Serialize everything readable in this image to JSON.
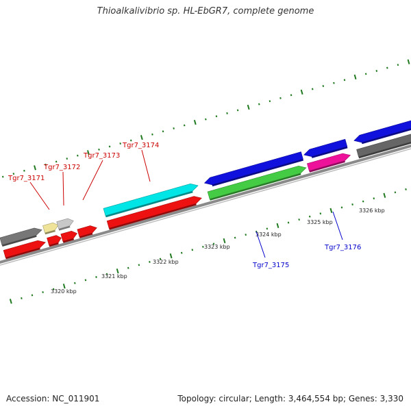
{
  "title": "Thioalkalivibrio sp. HL-EbGR7, complete genome",
  "footer": {
    "accession": "Accession: NC_011901",
    "summary": "Topology: circular; Length: 3,464,554 bp; Genes: 3,330"
  },
  "colors": {
    "backbone": "#8a8a8a",
    "ticks": "#1f7a1f",
    "label_top": "#cc0000",
    "label_bottom": "#0000cc"
  },
  "axis_labels": [
    "3320 kbp",
    "3321 kbp",
    "3322 kbp",
    "3323 kbp",
    "3324 kbp",
    "3325 kbp",
    "3326 kbp"
  ],
  "genes_top_strand": [
    {
      "id": "g1",
      "color": "#777777",
      "row": "outer",
      "dir": "fwd"
    },
    {
      "id": "g2",
      "color": "#efe39a",
      "row": "outer",
      "dir": "fwd"
    },
    {
      "id": "g3",
      "color": "#c8c8c8",
      "row": "outer",
      "dir": "fwd"
    },
    {
      "id": "g4",
      "color": "#00e5e5",
      "row": "outer",
      "dir": "fwd"
    },
    {
      "id": "g5",
      "color": "#ee1111",
      "row": "inner",
      "dir": "fwd"
    },
    {
      "id": "g6",
      "color": "#ee1111",
      "row": "inner",
      "dir": "fwd"
    },
    {
      "id": "g7",
      "color": "#ee1111",
      "row": "inner",
      "dir": "fwd"
    },
    {
      "id": "g8",
      "color": "#ee1111",
      "row": "inner",
      "dir": "fwd"
    },
    {
      "id": "g9",
      "color": "#ee1111",
      "row": "inner",
      "dir": "fwd"
    },
    {
      "id": "g10",
      "color": "#1111dd",
      "row": "outer",
      "dir": "rev"
    },
    {
      "id": "g11",
      "color": "#44cc44",
      "row": "inner",
      "dir": "fwd"
    },
    {
      "id": "g12",
      "color": "#1111dd",
      "row": "outer",
      "dir": "rev"
    },
    {
      "id": "g13",
      "color": "#ee1199",
      "row": "inner",
      "dir": "fwd"
    },
    {
      "id": "g14",
      "color": "#1111dd",
      "row": "outer",
      "dir": "rev"
    },
    {
      "id": "g15",
      "color": "#666666",
      "row": "inner",
      "dir": "fwd"
    }
  ],
  "gene_labels": [
    {
      "text": "Tgr7_3171",
      "strand": "top"
    },
    {
      "text": "Tgr7_3172",
      "strand": "top"
    },
    {
      "text": "Tgr7_3173",
      "strand": "top"
    },
    {
      "text": "Tgr7_3174",
      "strand": "top"
    },
    {
      "text": "Tgr7_3175",
      "strand": "bottom"
    },
    {
      "text": "Tgr7_3176",
      "strand": "bottom"
    }
  ]
}
